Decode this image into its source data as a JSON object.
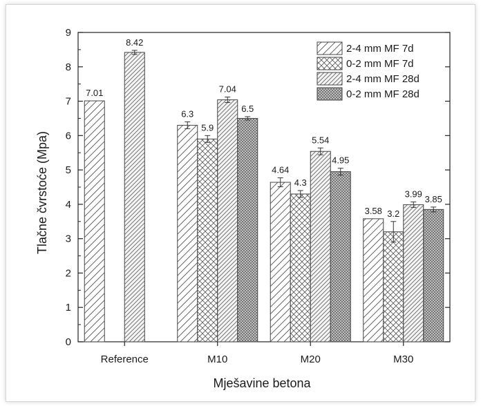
{
  "chart_data": {
    "type": "bar",
    "title": "",
    "xlabel": "Mješavine betona",
    "ylabel": "Tlačne čvrstoće  (Mpa)",
    "ylim": [
      0,
      9
    ],
    "yticks": [
      0,
      1,
      2,
      3,
      4,
      5,
      6,
      7,
      8,
      9
    ],
    "grid": false,
    "legend_position": "top-right",
    "categories": [
      "Reference",
      "M10",
      "M20",
      "M30"
    ],
    "series": [
      {
        "name": "2-4 mm MF 7d",
        "pattern": "hatch-forward",
        "values": [
          7.01,
          6.3,
          4.64,
          3.58
        ],
        "labels": [
          "7.01",
          "6.3",
          "4.64",
          "3.58"
        ],
        "errors": [
          0,
          0.1,
          0.13,
          0
        ]
      },
      {
        "name": "0-2 mm MF 7d",
        "pattern": "crosshatch",
        "values": [
          null,
          5.9,
          4.3,
          3.2
        ],
        "labels": [
          "",
          "5.9",
          "4.3",
          "3.2"
        ],
        "errors": [
          0,
          0.1,
          0.1,
          0.3
        ]
      },
      {
        "name": "2-4 mm MF 28d",
        "pattern": "hatch-dense",
        "values": [
          8.42,
          7.04,
          5.54,
          3.99
        ],
        "labels": [
          "8.42",
          "7.04",
          "5.54",
          "3.99"
        ],
        "errors": [
          0.06,
          0.08,
          0.1,
          0.08
        ]
      },
      {
        "name": "0-2 mm MF 28d",
        "pattern": "crosshatch-dense",
        "values": [
          null,
          6.5,
          4.95,
          3.85
        ],
        "labels": [
          "",
          "6.5",
          "4.95",
          "3.85"
        ],
        "errors": [
          0,
          0.05,
          0.1,
          0.07
        ]
      }
    ]
  }
}
